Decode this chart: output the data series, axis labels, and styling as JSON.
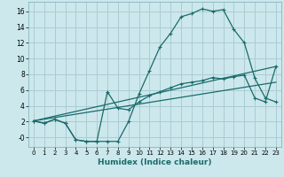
{
  "xlabel": "Humidex (Indice chaleur)",
  "background_color": "#cce8ec",
  "grid_color": "#aaccd4",
  "line_color": "#1a6b6b",
  "xlim": [
    -0.5,
    23.5
  ],
  "ylim": [
    -1.2,
    17.2
  ],
  "xticks": [
    0,
    1,
    2,
    3,
    4,
    5,
    6,
    7,
    8,
    9,
    10,
    11,
    12,
    13,
    14,
    15,
    16,
    17,
    18,
    19,
    20,
    21,
    22,
    23
  ],
  "yticks": [
    0,
    2,
    4,
    6,
    8,
    10,
    12,
    14,
    16
  ],
  "ytick_labels": [
    "-0",
    "2",
    "4",
    "6",
    "8",
    "10",
    "12",
    "14",
    "16"
  ],
  "curve1_x": [
    0,
    1,
    2,
    3,
    4,
    5,
    6,
    7,
    8,
    9,
    10,
    11,
    12,
    13,
    14,
    15,
    16,
    17,
    18,
    19,
    20,
    21,
    22,
    23
  ],
  "curve1_y": [
    2.1,
    1.8,
    2.3,
    1.8,
    -0.3,
    -0.5,
    -0.5,
    -0.5,
    -0.5,
    2.0,
    5.5,
    8.5,
    11.5,
    13.2,
    15.3,
    15.7,
    16.3,
    16.0,
    16.2,
    13.7,
    12.0,
    7.5,
    5.0,
    4.5
  ],
  "curve2_x": [
    0,
    1,
    2,
    3,
    4,
    5,
    6,
    7,
    8,
    9,
    10,
    11,
    12,
    13,
    14,
    15,
    16,
    17,
    18,
    19,
    20,
    21,
    22,
    23
  ],
  "curve2_y": [
    2.1,
    1.8,
    2.3,
    1.8,
    -0.3,
    -0.5,
    -0.5,
    5.8,
    3.7,
    3.5,
    4.5,
    5.3,
    5.8,
    6.3,
    6.8,
    7.0,
    7.2,
    7.6,
    7.4,
    7.7,
    7.9,
    5.0,
    4.5,
    9.0
  ],
  "line1_x": [
    0,
    23
  ],
  "line1_y": [
    2.1,
    9.0
  ],
  "line2_x": [
    0,
    23
  ],
  "line2_y": [
    2.1,
    7.0
  ]
}
